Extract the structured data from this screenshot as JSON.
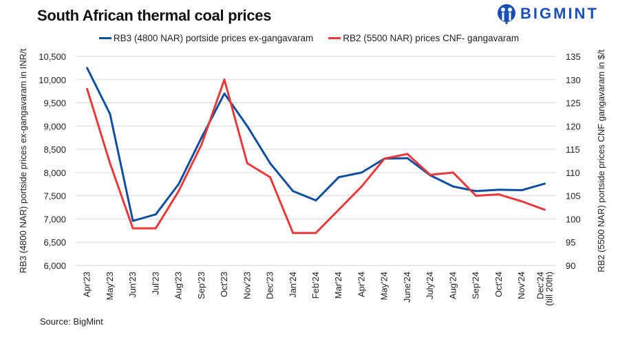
{
  "title": "South African thermal coal prices",
  "logo": {
    "text": "BIGMINT",
    "color": "#1a4fb5"
  },
  "source": "Source: BigMint",
  "chart_data": {
    "type": "line",
    "title": "South African thermal coal prices",
    "categories": [
      "Apr'23",
      "May'23",
      "Jun'23",
      "Jul'23",
      "Aug'23",
      "Sep'23",
      "Oct'23",
      "Nov'23",
      "Dec'23",
      "Jan'24",
      "Feb'24",
      "Mar'24",
      "Apr'24",
      "May'24",
      "June'24",
      "July'24",
      "Aug'24",
      "Sep'24",
      "Oct'24",
      "Nov'24",
      "Dec'24 (till 20th)"
    ],
    "ylabel": "RB3 (4800 NAR) portside prices ex-gangavaram  in INR/t",
    "y2label": "RB2 (5500 NAR) portside prices CNF gangavaram  in $/t",
    "ylim": [
      6000,
      10500
    ],
    "yticks": [
      "6,000",
      "6,500",
      "7,000",
      "7,500",
      "8,000",
      "8,500",
      "9,000",
      "9,500",
      "10,000",
      "10,500"
    ],
    "y2lim": [
      90,
      135
    ],
    "y2ticks": [
      "90",
      "95",
      "100",
      "105",
      "110",
      "115",
      "120",
      "125",
      "130",
      "135"
    ],
    "grid": true,
    "legend": "top",
    "series": [
      {
        "name": "RB3 (4800 NAR) portside prices ex-gangavaram",
        "axis": "left",
        "color": "#0d4ea0",
        "values": [
          10250,
          9260,
          6960,
          7100,
          7750,
          8750,
          9700,
          9000,
          8200,
          7600,
          7400,
          7900,
          8000,
          8300,
          8310,
          7940,
          7700,
          7600,
          7630,
          7620,
          7760
        ]
      },
      {
        "name": "RB2 (5500 NAR) prices CNF- gangavaram",
        "axis": "right",
        "color": "#e8393a",
        "values": [
          128,
          112,
          98,
          98,
          106,
          116,
          130,
          112,
          109,
          97,
          97,
          102,
          107,
          113,
          114,
          109.5,
          110,
          105,
          105.3,
          103.8,
          102
        ]
      }
    ]
  }
}
